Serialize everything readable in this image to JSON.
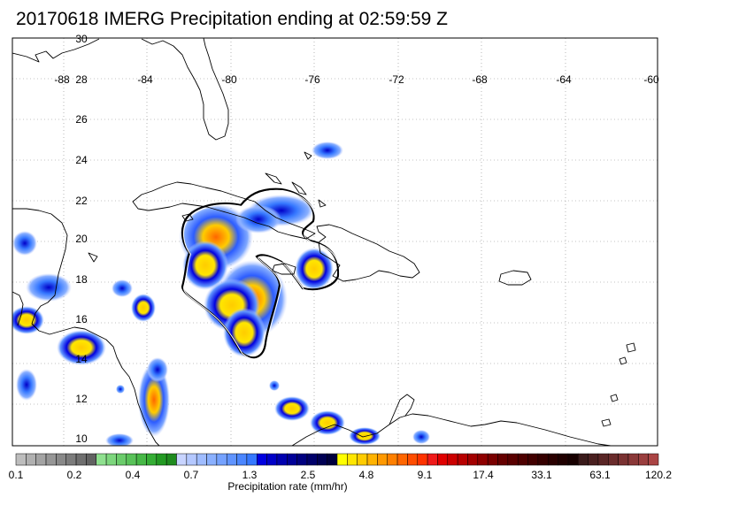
{
  "title": "20170618 IMERG Precipitation ending at 02:59:59 Z",
  "map": {
    "lon_labels": [
      "-88",
      "-84",
      "-80",
      "-76",
      "-72",
      "-68",
      "-64",
      "-60"
    ],
    "lat_labels": [
      "30",
      "28",
      "26",
      "24",
      "22",
      "20",
      "18",
      "16",
      "14",
      "12",
      "10"
    ],
    "coastline_color": "#000000",
    "grid": "dotted"
  },
  "colorbar": {
    "title": "Precipitation rate (mm/hr)",
    "tick_labels": [
      "0.1",
      "0.2",
      "0.4",
      "0.7",
      "1.3",
      "2.5",
      "4.8",
      "9.1",
      "17.4",
      "33.1",
      "63.1",
      "120.2"
    ],
    "colors": [
      "#bdbdbd",
      "#b0b0b0",
      "#a3a3a3",
      "#969696",
      "#898989",
      "#7c7c7c",
      "#6f6f6f",
      "#626262",
      "#8fe08f",
      "#7dd67d",
      "#6bcc6b",
      "#59c259",
      "#47b847",
      "#35ae35",
      "#239a23",
      "#1f8b1f",
      "#c8d4ff",
      "#b4c8ff",
      "#9fbcff",
      "#8ab0ff",
      "#75a2ff",
      "#6094ff",
      "#4b86ff",
      "#3678ff",
      "#0000e0",
      "#0000c8",
      "#0000b0",
      "#000098",
      "#000080",
      "#00006a",
      "#000054",
      "#00003e",
      "#ffff00",
      "#ffe600",
      "#ffcc00",
      "#ffb300",
      "#ff9900",
      "#ff8000",
      "#ff6600",
      "#ff4d00",
      "#ff3300",
      "#f01a1a",
      "#e00000",
      "#cc0000",
      "#b80000",
      "#a30000",
      "#8f0000",
      "#7a0000",
      "#660000",
      "#5a0000",
      "#4e0000",
      "#420000",
      "#360000",
      "#2a0000",
      "#200000",
      "#180000",
      "#3a1a1a",
      "#4a2020",
      "#5a2626",
      "#6a2c2c",
      "#7a3232",
      "#8a3838",
      "#9a3e3e",
      "#aa4444"
    ]
  }
}
